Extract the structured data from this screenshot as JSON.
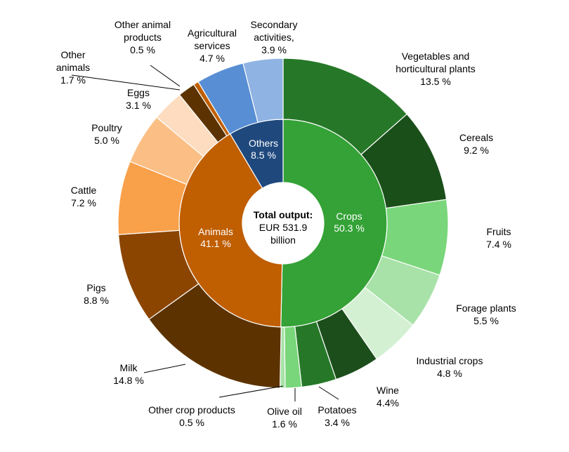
{
  "chart_data": {
    "type": "sunburst",
    "center_label": {
      "title": "Total output:",
      "line1": "EUR 531.9",
      "line2": "billion"
    },
    "inner": [
      {
        "name": "Crops",
        "value": 50.3,
        "label": "50.3 %",
        "color": "#34a236"
      },
      {
        "name": "Animals",
        "value": 41.1,
        "label": "41.1 %",
        "color": "#c05e02"
      },
      {
        "name": "Others",
        "value": 8.5,
        "label": "8.5 %",
        "color": "#1f497d"
      }
    ],
    "outer": [
      {
        "name": "Vegetables and horticultural plants",
        "line1": "Vegetables and",
        "line2": "horticultural  plants",
        "value": 13.5,
        "label": "13.5 %",
        "parent": "Crops",
        "color": "#267828"
      },
      {
        "name": "Cereals",
        "line1": "Cereals",
        "value": 9.2,
        "label": "9.2 %",
        "parent": "Crops",
        "color": "#1a4f1a"
      },
      {
        "name": "Fruits",
        "line1": "Fruits",
        "value": 7.4,
        "label": "7.4 %",
        "parent": "Crops",
        "color": "#79d67a"
      },
      {
        "name": "Forage plants",
        "line1": "Forage plants",
        "value": 5.5,
        "label": "5.5 %",
        "parent": "Crops",
        "color": "#a8e2a8"
      },
      {
        "name": "Industrial crops",
        "line1": "Industrial  crops",
        "value": 4.8,
        "label": "4.8 %",
        "parent": "Crops",
        "color": "#d3f0d3"
      },
      {
        "name": "Wine",
        "line1": "Wine",
        "value": 4.4,
        "label": "4.4%",
        "parent": "Crops",
        "color": "#1c4e1c"
      },
      {
        "name": "Potatoes",
        "line1": "Potatoes",
        "value": 3.4,
        "label": "3.4 %",
        "parent": "Crops",
        "color": "#267828"
      },
      {
        "name": "Olive oil",
        "line1": "Olive  oil",
        "value": 1.6,
        "label": "1.6 %",
        "parent": "Crops",
        "color": "#79d67a"
      },
      {
        "name": "Other crop products",
        "line1": "Other  crop products",
        "value": 0.5,
        "label": "0.5 %",
        "parent": "Crops",
        "color": "#a8e2a8"
      },
      {
        "name": "Milk",
        "line1": "Milk",
        "value": 14.8,
        "label": "14.8 %",
        "parent": "Animals",
        "color": "#5c3300"
      },
      {
        "name": "Pigs",
        "line1": "Pigs",
        "value": 8.8,
        "label": "8.8 %",
        "parent": "Animals",
        "color": "#8b4500"
      },
      {
        "name": "Cattle",
        "line1": "Cattle",
        "value": 7.2,
        "label": "7.2 %",
        "parent": "Animals",
        "color": "#f9a04a"
      },
      {
        "name": "Poultry",
        "line1": "Poultry",
        "value": 5.0,
        "label": "5.0 %",
        "parent": "Animals",
        "color": "#fbbf85"
      },
      {
        "name": "Eggs",
        "line1": "Eggs",
        "value": 3.1,
        "label": "3.1 %",
        "parent": "Animals",
        "color": "#fddcbf"
      },
      {
        "name": "Other animals",
        "line1": "Other",
        "line2": "animals",
        "value": 1.7,
        "label": "1.7 %",
        "parent": "Animals",
        "color": "#5c3300"
      },
      {
        "name": "Other animal products",
        "line1": "Other  animal",
        "line2": "products",
        "value": 0.5,
        "label": "0.5 %",
        "parent": "Animals",
        "color": "#c05f00"
      },
      {
        "name": "Agricultural services",
        "line1": "Agricultural",
        "line2": "services",
        "value": 4.7,
        "label": "4.7 %",
        "parent": "Others",
        "color": "#588ed4"
      },
      {
        "name": "Secondary activities",
        "line1": "Secondary",
        "line2": "activities,",
        "value": 3.9,
        "label": "3.9 %",
        "parent": "Others",
        "color": "#8fb3e2"
      }
    ]
  }
}
